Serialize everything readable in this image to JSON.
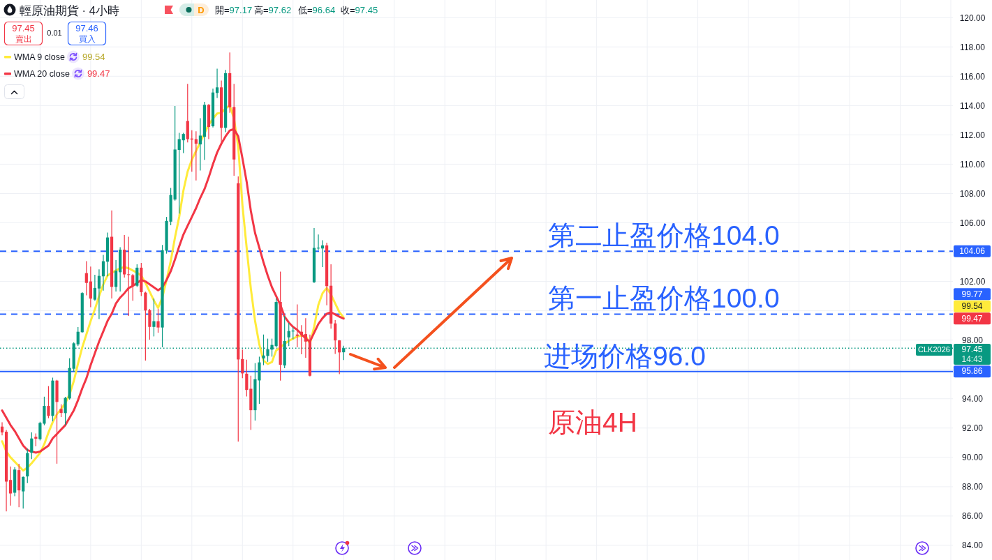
{
  "chart_data": {
    "type": "candlestick",
    "title": "輕原油期貨 · 4小時",
    "categories": [
      null,
      null,
      null,
      null,
      null,
      null,
      null,
      null,
      null,
      null,
      null,
      null,
      null,
      null,
      null,
      null,
      null,
      null,
      null,
      null,
      null,
      null,
      null,
      null,
      null,
      null,
      null,
      null,
      null,
      null,
      null,
      null,
      null,
      null,
      null,
      null,
      null,
      null,
      null,
      null,
      null,
      null,
      null,
      null,
      null,
      null,
      null,
      null,
      null,
      null,
      null,
      null,
      null,
      null,
      null,
      null,
      null,
      null,
      null,
      null,
      null,
      null,
      null,
      null,
      null,
      null,
      null,
      null,
      null,
      null,
      null,
      null,
      null,
      null,
      null,
      null,
      null,
      null,
      null,
      null,
      null,
      null,
      null,
      null,
      null,
      null,
      null,
      null,
      null,
      null,
      null,
      null,
      null,
      null,
      null,
      null,
      null,
      null,
      null,
      null,
      null,
      null,
      null,
      null,
      null,
      null,
      null,
      null,
      null,
      null,
      null,
      null,
      null,
      null,
      null,
      null,
      null,
      null,
      null,
      null,
      null,
      null,
      null,
      null,
      null,
      null,
      null,
      null,
      null,
      null,
      null,
      null,
      null,
      null,
      null,
      null,
      null,
      null,
      null,
      null,
      null,
      null,
      null,
      null,
      null,
      null,
      null,
      null,
      null,
      null,
      null,
      null,
      null,
      null,
      null,
      null,
      null,
      null,
      null,
      null,
      null,
      null,
      null,
      null,
      null,
      null,
      null,
      null,
      null,
      null,
      null,
      null,
      null,
      null,
      null,
      null,
      null,
      null,
      null,
      null,
      null,
      null,
      null,
      null,
      null,
      null,
      null,
      null,
      null,
      null,
      null,
      null,
      null,
      null,
      null,
      null,
      null,
      null,
      null,
      null,
      null,
      null,
      null,
      null,
      null,
      null,
      null,
      null,
      null,
      null,
      null,
      null,
      null,
      null,
      null,
      null,
      null,
      null,
      null,
      null,
      null,
      null,
      null,
      null,
      null,
      null
    ],
    "ohlc": [
      [
        92.1,
        92.4,
        91.5,
        91.7
      ],
      [
        91.75,
        91.87,
        86.32,
        88.35
      ],
      [
        88.46,
        89.37,
        86.71,
        87.54
      ],
      [
        87.59,
        89.33,
        87.35,
        89.17
      ],
      [
        89.13,
        89.57,
        86.6,
        87.75
      ],
      [
        87.68,
        88.7,
        86.51,
        88.67
      ],
      [
        88.7,
        90.6,
        88.25,
        90.29
      ],
      [
        90.32,
        91.71,
        89.89,
        91.29
      ],
      [
        91.4,
        91.63,
        90.76,
        91.27
      ],
      [
        91.24,
        92.43,
        91.16,
        92.35
      ],
      [
        92.3,
        94.14,
        92.19,
        93.51
      ],
      [
        93.51,
        94.86,
        92.67,
        92.83
      ],
      [
        92.83,
        95.44,
        92.46,
        95.24
      ],
      [
        95.24,
        95.29,
        89.57,
        93.78
      ],
      [
        93.3,
        93.62,
        92.75,
        93.03
      ],
      [
        93.02,
        94.13,
        92.19,
        94.06
      ],
      [
        94.02,
        96.76,
        93.94,
        96.1
      ],
      [
        96.05,
        97.86,
        95.84,
        97.78
      ],
      [
        97.71,
        98.89,
        97.6,
        98.57
      ],
      [
        98.54,
        101.27,
        98.51,
        101.21
      ],
      [
        102.57,
        103.38,
        101.05,
        101.9
      ],
      [
        102.0,
        103.02,
        100.25,
        100.83
      ],
      [
        100.76,
        102.46,
        100.68,
        101.56
      ],
      [
        101.52,
        102.83,
        99.44,
        102.38
      ],
      [
        102.35,
        103.81,
        101.37,
        103.38
      ],
      [
        103.35,
        105.33,
        102.35,
        105.0
      ],
      [
        105.05,
        106.84,
        100.84,
        101.63
      ],
      [
        101.63,
        103.46,
        101.32,
        102.73
      ],
      [
        102.63,
        104.33,
        101.32,
        104.17
      ],
      [
        104.17,
        105.17,
        102.27,
        102.48
      ],
      [
        102.49,
        105.05,
        99.65,
        102.44
      ],
      [
        102.43,
        102.51,
        100.68,
        101.71
      ],
      [
        101.71,
        103.17,
        101.63,
        102.94
      ],
      [
        102.94,
        103.27,
        101.0,
        101.27
      ],
      [
        101.24,
        101.3,
        96.6,
        100.02
      ],
      [
        100.05,
        100.13,
        98.03,
        98.9
      ],
      [
        98.9,
        100.84,
        98.25,
        99.29
      ],
      [
        99.29,
        100.13,
        98.5,
        98.86
      ],
      [
        98.86,
        104.49,
        97.51,
        104.13
      ],
      [
        104.1,
        106.4,
        103.9,
        106.13
      ],
      [
        106.08,
        108.38,
        105.84,
        107.9
      ],
      [
        107.59,
        113.97,
        107.51,
        111.0
      ],
      [
        110.97,
        112.14,
        106.63,
        111.71
      ],
      [
        111.63,
        112.14,
        110.76,
        112.06
      ],
      [
        112.95,
        115.48,
        111.48,
        111.71
      ],
      [
        111.75,
        112.32,
        109.49,
        111.68
      ],
      [
        111.71,
        112.24,
        108.89,
        111.4
      ],
      [
        111.35,
        113.14,
        109.57,
        111.95
      ],
      [
        111.87,
        114.25,
        110.29,
        114.05
      ],
      [
        114.05,
        114.1,
        111.71,
        112.54
      ],
      [
        112.59,
        115.16,
        112.51,
        114.89
      ],
      [
        114.86,
        116.52,
        114.52,
        115.24
      ],
      [
        115.24,
        115.71,
        111.46,
        112.48
      ],
      [
        112.48,
        116.43,
        112.19,
        116.21
      ],
      [
        116.21,
        117.62,
        113.5,
        113.89
      ],
      [
        113.9,
        115.48,
        109.21,
        110.32
      ],
      [
        108.7,
        109.17,
        91.08,
        96.68
      ],
      [
        96.71,
        97.35,
        95.4,
        95.73
      ],
      [
        95.71,
        96.67,
        94.16,
        94.6
      ],
      [
        94.68,
        95.57,
        91.87,
        93.22
      ],
      [
        93.22,
        96.43,
        92.51,
        95.33
      ],
      [
        95.25,
        96.87,
        93.65,
        96.48
      ],
      [
        96.75,
        98.38,
        96.29,
        96.95
      ],
      [
        96.92,
        98.1,
        96.52,
        97.38
      ],
      [
        97.35,
        98.1,
        96.87,
        97.67
      ],
      [
        97.59,
        100.84,
        97.51,
        100.6
      ],
      [
        100.6,
        102.67,
        95.24,
        96.32
      ],
      [
        96.27,
        99.65,
        96.08,
        97.94
      ],
      [
        98.19,
        99.17,
        97.59,
        98.62
      ],
      [
        98.59,
        98.86,
        98.06,
        98.65
      ],
      [
        98.38,
        100.44,
        97.51,
        98.29
      ],
      [
        98.57,
        99.02,
        97.03,
        98.33
      ],
      [
        98.41,
        99.49,
        96.79,
        97.9
      ],
      [
        97.94,
        98.38,
        95.52,
        95.57
      ],
      [
        101.95,
        105.65,
        101.9,
        104.29
      ],
      [
        104.25,
        105.2,
        104.14,
        104.3
      ],
      [
        104.25,
        104.81,
        102.98,
        104.46
      ],
      [
        104.46,
        104.65,
        100.37,
        101.68
      ],
      [
        101.71,
        103.17,
        98.78,
        99.13
      ],
      [
        99.14,
        99.37,
        97.06,
        97.98
      ],
      [
        97.98,
        98.0,
        95.68,
        97.16
      ],
      [
        97.17,
        97.62,
        96.64,
        97.45
      ],
      null,
      null,
      null,
      null,
      null,
      null,
      null,
      null,
      null,
      null,
      null,
      null,
      null,
      null,
      null,
      null,
      null,
      null,
      null,
      null,
      null,
      null,
      null,
      null,
      null,
      null,
      null,
      null,
      null,
      null,
      null,
      null,
      null,
      null,
      null,
      null,
      null,
      null,
      null,
      null,
      null,
      null,
      null,
      null,
      null,
      null,
      null,
      null,
      null,
      null,
      null,
      null,
      null,
      null,
      null,
      null,
      null,
      null,
      null,
      null,
      null,
      null,
      null,
      null,
      null,
      null,
      null,
      null,
      null,
      null,
      null,
      null,
      null,
      null,
      null,
      null,
      null,
      null,
      null,
      null,
      null,
      null,
      null,
      null,
      null,
      null,
      null,
      null,
      null,
      null,
      null,
      null,
      null,
      null,
      null,
      null,
      null,
      null,
      null,
      null,
      null,
      null,
      null,
      null,
      null,
      null,
      null,
      null,
      null,
      null,
      null,
      null,
      null,
      null,
      null,
      null,
      null,
      null,
      null,
      null,
      null,
      null,
      null,
      null,
      null,
      null,
      null,
      null,
      null,
      null,
      null,
      null,
      null,
      null,
      null,
      null,
      null,
      null,
      null,
      null,
      null,
      null,
      null,
      null
    ],
    "colors": [
      "#f23645",
      "#f23645",
      "#f23645",
      "#089981",
      "#f23645",
      "#089981",
      "#089981",
      "#089981",
      "#f23645",
      "#089981",
      "#089981",
      "#f23645",
      "#089981",
      "#f23645",
      "#f23645",
      "#089981",
      "#089981",
      "#089981",
      "#089981",
      "#089981",
      "#f23645",
      "#f23645",
      "#089981",
      "#089981",
      "#089981",
      "#089981",
      "#f23645",
      "#089981",
      "#089981",
      "#f23645",
      "#f23645",
      "#f23645",
      "#089981",
      "#f23645",
      "#f23645",
      "#f23645",
      "#089981",
      "#f23645",
      "#089981",
      "#089981",
      "#089981",
      "#089981",
      "#089981",
      "#089981",
      "#f23645",
      "#f23645",
      "#f23645",
      "#089981",
      "#089981",
      "#f23645",
      "#089981",
      "#089981",
      "#f23645",
      "#089981",
      "#f23645",
      "#f23645",
      "#f23645",
      "#f23645",
      "#f23645",
      "#f23645",
      "#089981",
      "#089981",
      "#089981",
      "#089981",
      "#089981",
      "#089981",
      "#f23645",
      "#089981",
      "#089981",
      "#089981",
      "#f23645",
      "#f23645",
      "#f23645",
      "#f23645",
      "#089981",
      "#089981",
      "#089981",
      "#f23645",
      "#f23645",
      "#f23645",
      "#f23645",
      "#089981",
      null,
      null,
      null,
      null,
      null,
      null,
      null,
      null,
      null,
      null,
      null,
      null,
      null,
      null,
      null,
      null,
      null,
      null,
      null,
      null,
      null,
      null,
      null,
      null,
      null,
      null,
      null,
      null,
      null,
      null,
      null,
      null,
      null,
      null,
      null,
      null,
      null,
      null,
      null,
      null,
      null,
      null,
      null,
      null,
      null,
      null,
      null,
      null,
      null,
      null,
      null,
      null,
      null,
      null,
      null,
      null,
      null,
      null,
      null,
      null,
      null,
      null,
      null,
      null,
      null,
      null,
      null,
      null,
      null,
      null,
      null,
      null,
      null,
      null,
      null,
      null,
      null,
      null,
      null,
      null,
      null,
      null,
      null,
      null,
      null,
      null,
      null,
      null,
      null,
      null,
      null,
      null,
      null,
      null,
      null,
      null,
      null,
      null,
      null,
      null,
      null,
      null,
      null,
      null,
      null,
      null,
      null,
      null,
      null,
      null,
      null,
      null,
      null,
      null,
      null,
      null,
      null,
      null,
      null,
      null,
      null,
      null,
      null,
      null,
      null,
      null,
      null,
      null,
      null,
      null,
      null,
      null,
      null,
      null,
      null,
      null,
      null,
      null,
      null,
      null,
      null,
      null,
      null,
      null
    ],
    "series": [
      {
        "name": "WMA 9 close",
        "type": "line",
        "color": "#ffeb3b",
        "values": [
          91.1,
          90.4,
          90.0,
          89.7,
          89.4,
          89.1,
          89.3,
          89.6,
          89.95,
          90.3,
          90.9,
          91.7,
          92.4,
          92.95,
          93.3,
          93.7,
          94.3,
          95.2,
          96.4,
          97.5,
          98.4,
          99.3,
          100.1,
          101.0,
          101.8,
          102.4,
          102.6,
          102.75,
          102.9,
          102.98,
          102.9,
          102.75,
          102.6,
          102.4,
          101.9,
          101.3,
          100.7,
          100.2,
          100.9,
          102.1,
          103.4,
          105.0,
          106.4,
          108.2,
          109.5,
          110.3,
          110.9,
          111.5,
          112.1,
          112.7,
          113.1,
          113.46,
          113.5,
          113.8,
          114.0,
          113.1,
          111.2,
          107.2,
          104.3,
          101.5,
          99.3,
          97.7,
          96.6,
          96.37,
          96.5,
          97.3,
          97.5,
          97.75,
          97.95,
          98.1,
          98.25,
          98.3,
          98.3,
          97.75,
          98.9,
          100.4,
          101.2,
          101.56,
          101.1,
          100.5,
          99.9,
          99.54,
          null,
          null,
          null,
          null,
          null,
          null,
          null,
          null,
          null,
          null,
          null,
          null,
          null,
          null,
          null,
          null,
          null,
          null,
          null,
          null,
          null,
          null,
          null,
          null,
          null,
          null,
          null,
          null,
          null,
          null,
          null,
          null,
          null,
          null,
          null,
          null,
          null,
          null,
          null,
          null,
          null,
          null,
          null,
          null,
          null,
          null,
          null,
          null,
          null,
          null,
          null,
          null,
          null,
          null,
          null,
          null,
          null,
          null,
          null,
          null,
          null,
          null,
          null,
          null,
          null,
          null,
          null,
          null,
          null,
          null,
          null,
          null,
          null,
          null,
          null,
          null,
          null,
          null,
          null,
          null,
          null,
          null,
          null,
          null,
          null,
          null,
          null,
          null,
          null,
          null,
          null,
          null,
          null,
          null,
          null,
          null,
          null,
          null,
          null,
          null,
          null,
          null,
          null,
          null,
          null,
          null,
          null,
          null,
          null,
          null,
          null,
          null,
          null,
          null,
          null,
          null,
          null,
          null,
          null,
          null,
          null,
          null,
          null,
          null,
          null,
          null,
          null,
          null,
          null,
          null,
          null,
          null,
          null,
          null,
          null,
          null,
          null,
          null,
          null,
          null,
          null,
          null,
          null,
          null
        ]
      },
      {
        "name": "WMA 20 close",
        "type": "line",
        "color": "#f23645",
        "values": [
          93.2,
          92.7,
          92.2,
          91.8,
          91.3,
          90.8,
          90.5,
          90.4,
          90.33,
          90.4,
          90.6,
          90.8,
          91.3,
          91.6,
          91.9,
          92.2,
          92.7,
          93.2,
          93.9,
          94.7,
          95.4,
          96.3,
          97.1,
          97.9,
          98.6,
          99.3,
          99.8,
          100.5,
          100.9,
          101.2,
          101.55,
          101.7,
          101.9,
          102.1,
          102.0,
          101.8,
          101.6,
          101.4,
          101.6,
          102.1,
          102.7,
          103.5,
          104.4,
          105.2,
          105.8,
          106.4,
          107.0,
          107.7,
          108.3,
          109.1,
          110.0,
          110.8,
          111.4,
          111.9,
          112.3,
          112.4,
          111.9,
          110.4,
          108.8,
          106.8,
          105.3,
          104.3,
          103.3,
          102.4,
          101.6,
          101.0,
          100.4,
          99.6,
          99.2,
          98.9,
          98.7,
          98.4,
          98.1,
          97.9,
          98.5,
          99.1,
          99.5,
          99.8,
          99.9,
          99.75,
          99.6,
          99.47,
          null,
          null,
          null,
          null,
          null,
          null,
          null,
          null,
          null,
          null,
          null,
          null,
          null,
          null,
          null,
          null,
          null,
          null,
          null,
          null,
          null,
          null,
          null,
          null,
          null,
          null,
          null,
          null,
          null,
          null,
          null,
          null,
          null,
          null,
          null,
          null,
          null,
          null,
          null,
          null,
          null,
          null,
          null,
          null,
          null,
          null,
          null,
          null,
          null,
          null,
          null,
          null,
          null,
          null,
          null,
          null,
          null,
          null,
          null,
          null,
          null,
          null,
          null,
          null,
          null,
          null,
          null,
          null,
          null,
          null,
          null,
          null,
          null,
          null,
          null,
          null,
          null,
          null,
          null,
          null,
          null,
          null,
          null,
          null,
          null,
          null,
          null,
          null,
          null,
          null,
          null,
          null,
          null,
          null,
          null,
          null,
          null,
          null,
          null,
          null,
          null,
          null,
          null,
          null,
          null,
          null,
          null,
          null,
          null,
          null,
          null,
          null,
          null,
          null,
          null,
          null,
          null,
          null,
          null,
          null,
          null,
          null,
          null,
          null,
          null,
          null,
          null,
          null,
          null,
          null,
          null,
          null,
          null,
          null,
          null,
          null,
          null,
          null,
          null,
          null,
          null,
          null,
          null,
          null
        ]
      }
    ],
    "ylim": [
      83,
      121.2
    ],
    "yticks": [
      {
        "value": 84,
        "label": "84.00"
      },
      {
        "value": 86,
        "label": "86.00"
      },
      {
        "value": 88,
        "label": "88.00"
      },
      {
        "value": 90,
        "label": "90.00"
      },
      {
        "value": 92,
        "label": "92.00"
      },
      {
        "value": 94,
        "label": "94.00"
      },
      {
        "value": 96,
        "label": null
      },
      {
        "value": 98,
        "label": "98.00"
      },
      {
        "value": 100,
        "label": null
      },
      {
        "value": 102,
        "label": "102.00"
      },
      {
        "value": 104,
        "label": null
      },
      {
        "value": 106,
        "label": "106.00"
      },
      {
        "value": 108,
        "label": "108.00"
      },
      {
        "value": 110,
        "label": "110.00"
      },
      {
        "value": 112,
        "label": "112.00"
      },
      {
        "value": 114,
        "label": "114.00"
      },
      {
        "value": 116,
        "label": "116.00"
      },
      {
        "value": 118,
        "label": "118.00"
      },
      {
        "value": 120,
        "label": "120.00"
      }
    ],
    "grid": true,
    "legend": "top left",
    "ref_lines": [
      {
        "axis": "y",
        "value": 104.06,
        "label": "104.06",
        "color": "#2962ff",
        "line_style": "dashed"
      },
      {
        "axis": "y",
        "value": 99.77,
        "label": "99.77",
        "color": "#2962ff",
        "line_style": "dashed"
      },
      {
        "axis": "y",
        "value": 95.86,
        "label": "95.86",
        "color": "#2962ff",
        "line_style": "solid"
      },
      {
        "axis": "y",
        "value": 97.45,
        "label": "97.45",
        "color": "#089981",
        "line_style": "dotted"
      }
    ],
    "annotations": [
      "開=97.17",
      "高=97.62",
      "低=96.64",
      "收=97.45",
      "D",
      "97.45",
      "賣出",
      "0.01",
      "97.46",
      "買入",
      "99.54",
      "99.47",
      {
        "text": "第二止盈价格104.0",
        "y": 104.06
      },
      {
        "text": "第一止盈价格100.0",
        "y": 99.77
      },
      {
        "text": "进场价格96.0",
        "y": 95.86
      },
      "原油4H",
      "99.54",
      "99.47",
      "CLK2026",
      "14:43"
    ]
  }
}
